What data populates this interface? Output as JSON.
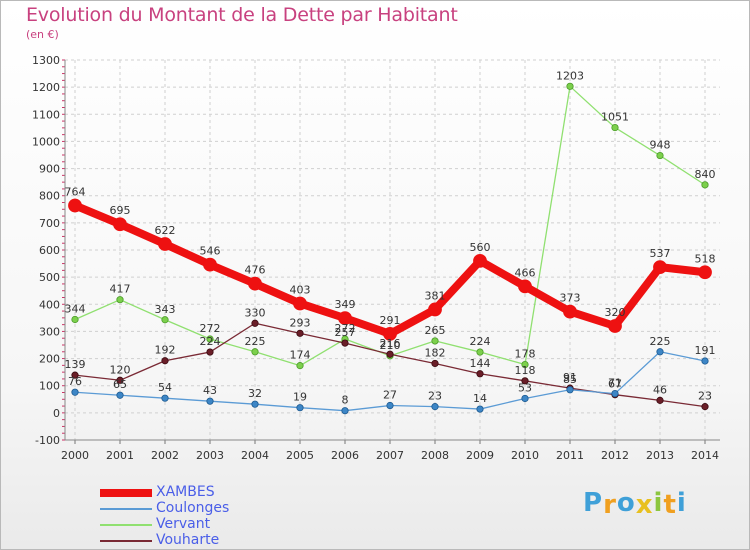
{
  "title": "Evolution du Montant de la Dette par Habitant",
  "subtitle": "(en €)",
  "logo": {
    "letters": [
      "P",
      "r",
      "o",
      "x",
      "i",
      "t",
      "i"
    ],
    "colors": [
      "#3fa0d8",
      "#f0a020",
      "#3fa0d8",
      "#e8c020",
      "#8cc63f",
      "#f0a020",
      "#3fa0d8"
    ]
  },
  "chart_data": {
    "type": "line",
    "title": "Evolution du Montant de la Dette par Habitant",
    "subtitle": "(en €)",
    "x": [
      "2000",
      "2001",
      "2002",
      "2003",
      "2004",
      "2005",
      "2006",
      "2007",
      "2008",
      "2009",
      "2010",
      "2011",
      "2012",
      "2013",
      "2014"
    ],
    "ylim": [
      -100,
      1300
    ],
    "yticks": [
      "-100",
      "0",
      "100",
      "200",
      "300",
      "400",
      "500",
      "600",
      "700",
      "800",
      "900",
      "1000",
      "1100",
      "1200",
      "1300"
    ],
    "grid": true,
    "legend_position": "bottom-left",
    "series": [
      {
        "name": "XAMBES",
        "color": "#ee1111",
        "values": [
          764,
          695,
          622,
          546,
          476,
          403,
          349,
          291,
          381,
          560,
          466,
          373,
          320,
          537,
          518
        ],
        "labels": [
          "764",
          "695",
          "622",
          "546",
          "476",
          "403",
          "349",
          "291",
          "381",
          "560",
          "466",
          "373",
          "320",
          "537",
          "518"
        ]
      },
      {
        "name": "Coulonges",
        "color": "#5b9bd5",
        "values": [
          76,
          65,
          54,
          43,
          32,
          19,
          8,
          27,
          23,
          14,
          53,
          85,
          71,
          225,
          191
        ],
        "labels": [
          "76",
          "65",
          "54",
          "43",
          "32",
          "19",
          "8",
          "27",
          "23",
          "14",
          "53",
          "85",
          "71",
          "225",
          "191"
        ]
      },
      {
        "name": "Vervant",
        "color": "#90e070",
        "values": [
          344,
          417,
          343,
          272,
          225,
          174,
          272,
          210,
          265,
          224,
          178,
          1203,
          1051,
          948,
          840
        ],
        "labels": [
          "344",
          "417",
          "343",
          "272",
          "225",
          "174",
          "272",
          "210",
          "265",
          "224",
          "178",
          "1203",
          "1051",
          "948",
          "840"
        ]
      },
      {
        "name": "Vouharte",
        "color": "#7a2a35",
        "values": [
          139,
          120,
          192,
          224,
          330,
          293,
          257,
          216,
          182,
          144,
          118,
          91,
          67,
          46,
          23
        ],
        "labels": [
          "139",
          "120",
          "192",
          "224",
          "330",
          "293",
          "257",
          "216",
          "182",
          "144",
          "118",
          "91",
          "67",
          "46",
          "23"
        ]
      }
    ]
  }
}
